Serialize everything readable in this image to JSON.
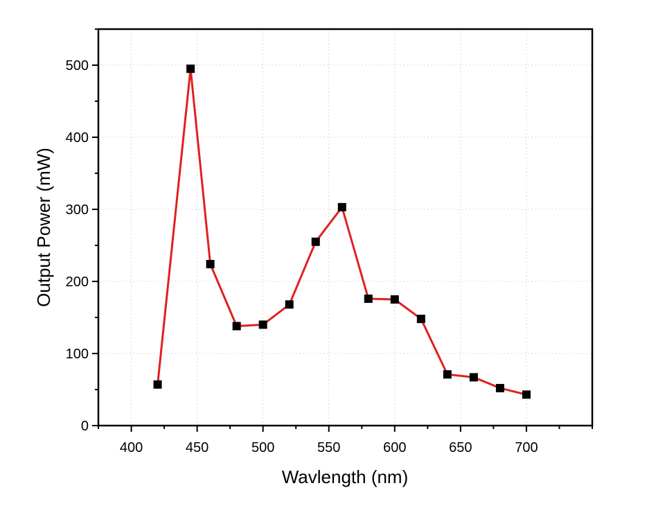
{
  "chart_data": {
    "type": "line",
    "title": "",
    "xlabel": "Wavlength (nm)",
    "ylabel": "Output Power (mW)",
    "xlim": [
      375,
      750
    ],
    "ylim": [
      0,
      550
    ],
    "xticks": [
      400,
      450,
      500,
      550,
      600,
      650,
      700
    ],
    "yticks": [
      0,
      100,
      200,
      300,
      400,
      500
    ],
    "grid": true,
    "series": [
      {
        "line_color": "#e02020",
        "marker": "square",
        "marker_color": "#000000",
        "x": [
          420,
          445,
          460,
          480,
          500,
          520,
          540,
          560,
          580,
          600,
          620,
          640,
          660,
          680,
          700
        ],
        "y": [
          57,
          495,
          224,
          138,
          140,
          168,
          255,
          303,
          176,
          175,
          148,
          71,
          67,
          52,
          43
        ]
      }
    ]
  }
}
